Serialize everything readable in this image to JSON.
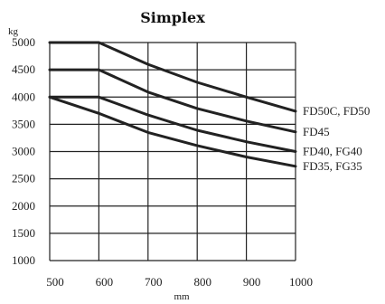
{
  "chart_data": {
    "type": "line",
    "title": "Simplex",
    "ylabel": "kg",
    "xlabel": "mm",
    "xlim": [
      500,
      1000
    ],
    "ylim": [
      1000,
      5000
    ],
    "x_ticks": [
      500,
      600,
      700,
      800,
      900,
      1000
    ],
    "y_ticks": [
      1000,
      1500,
      2000,
      2500,
      3000,
      3500,
      4000,
      4500,
      5000
    ],
    "grid": true,
    "series": [
      {
        "name": "FD50C, FD50",
        "x": [
          500,
          600,
          700,
          800,
          900,
          1000
        ],
        "y": [
          5000,
          5000,
          4600,
          4270,
          4000,
          3740
        ]
      },
      {
        "name": "FD45",
        "x": [
          500,
          600,
          700,
          800,
          900,
          1000
        ],
        "y": [
          4500,
          4500,
          4090,
          3790,
          3560,
          3360
        ]
      },
      {
        "name": "FD40, FG40",
        "x": [
          500,
          600,
          700,
          800,
          900,
          1000
        ],
        "y": [
          4000,
          4000,
          3670,
          3390,
          3180,
          3000
        ]
      },
      {
        "name": "FD35, FG35",
        "x": [
          500,
          600,
          700,
          800,
          900,
          1000
        ],
        "y": [
          4000,
          3700,
          3350,
          3110,
          2900,
          2730
        ]
      }
    ]
  }
}
